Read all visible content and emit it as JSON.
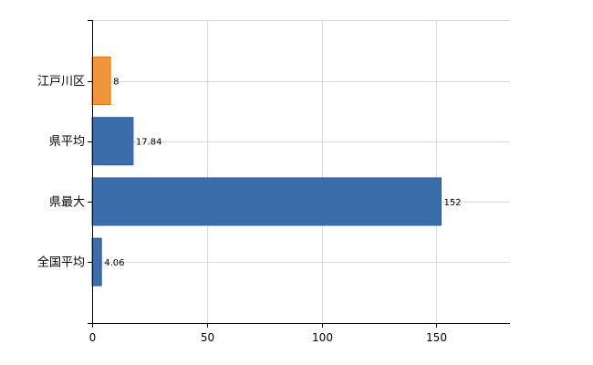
{
  "chart_data": {
    "type": "bar",
    "orientation": "horizontal",
    "categories": [
      "江戸川区",
      "県平均",
      "県最大",
      "全国平均"
    ],
    "values": [
      8,
      17.84,
      152,
      4.06
    ],
    "value_labels": [
      "8",
      "17.84",
      "152",
      "4.06"
    ],
    "colors": [
      "#f0963a",
      "#3a6daa",
      "#3a6daa",
      "#3a6daa"
    ],
    "bar_edge_colors": [
      "#e07a17",
      "#30609c",
      "#30609c",
      "#30609c"
    ],
    "xlim": [
      0,
      182
    ],
    "xticks": [
      0,
      50,
      100,
      150
    ],
    "xtick_labels": [
      "0",
      "50",
      "100",
      "150"
    ],
    "grid": true,
    "title": "",
    "xlabel": "",
    "ylabel": ""
  }
}
